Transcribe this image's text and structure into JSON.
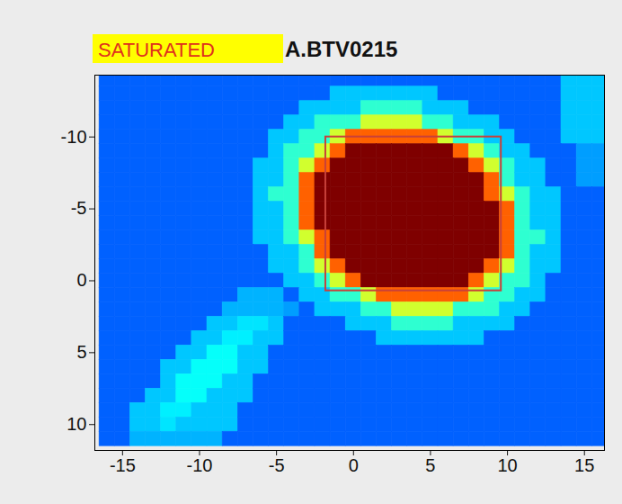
{
  "chart_data": {
    "type": "heatmap",
    "title": "A.BTV0215",
    "badge": "SATURATED",
    "xlim": [
      -16.8,
      16.3
    ],
    "xticks": [
      -15,
      -10,
      -5,
      0,
      5,
      10,
      15
    ],
    "ylim": [
      11.8,
      -14.3
    ],
    "yticks": [
      -10,
      -5,
      0,
      5,
      10
    ],
    "grid": false,
    "zlim": [
      0,
      100
    ],
    "roi": {
      "x": [
        -1.8,
        9.6
      ],
      "y": [
        -10,
        0.7
      ]
    },
    "x_edges": [
      -16.5,
      -15.5,
      -14.5,
      -13.5,
      -12.5,
      -11.5,
      -10.5,
      -9.5,
      -8.5,
      -7.5,
      -6.5,
      -5.5,
      -4.5,
      -3.5,
      -2.5,
      -1.5,
      -0.5,
      0.5,
      1.5,
      2.5,
      3.5,
      4.5,
      5.5,
      6.5,
      7.5,
      8.5,
      9.5,
      10.5,
      11.5,
      12.5,
      13.5,
      14.5,
      15.5,
      16.5
    ],
    "y_edges": [
      -14.5,
      -13.5,
      -12.5,
      -11.5,
      -10.5,
      -9.5,
      -8.5,
      -7.5,
      -6.5,
      -5.5,
      -4.5,
      -3.5,
      -2.5,
      -1.5,
      -0.5,
      0.5,
      1.5,
      2.5,
      3.5,
      4.5,
      5.5,
      6.5,
      7.5,
      8.5,
      9.5,
      10.5,
      11.5
    ],
    "z": [
      [
        22,
        22,
        22,
        22,
        22,
        22,
        22,
        22,
        22,
        22,
        22,
        22,
        22,
        22,
        22,
        22,
        22,
        22,
        22,
        22,
        22,
        22,
        22,
        22,
        22,
        22,
        22,
        22,
        22,
        22,
        32,
        32,
        32
      ],
      [
        22,
        22,
        22,
        22,
        22,
        22,
        22,
        22,
        22,
        22,
        22,
        22,
        22,
        22,
        22,
        32,
        32,
        32,
        32,
        32,
        32,
        32,
        22,
        22,
        22,
        22,
        22,
        22,
        22,
        22,
        32,
        32,
        32
      ],
      [
        22,
        22,
        22,
        22,
        22,
        22,
        22,
        22,
        22,
        22,
        22,
        22,
        22,
        32,
        32,
        32,
        32,
        42,
        42,
        42,
        42,
        32,
        32,
        32,
        22,
        22,
        22,
        22,
        22,
        22,
        32,
        32,
        32
      ],
      [
        22,
        22,
        22,
        22,
        22,
        22,
        22,
        22,
        22,
        22,
        22,
        22,
        32,
        32,
        42,
        42,
        42,
        58,
        58,
        58,
        58,
        42,
        42,
        32,
        32,
        32,
        22,
        22,
        22,
        22,
        32,
        32,
        32
      ],
      [
        22,
        22,
        22,
        22,
        22,
        22,
        22,
        22,
        22,
        22,
        22,
        32,
        32,
        42,
        42,
        58,
        78,
        78,
        78,
        78,
        78,
        78,
        58,
        42,
        42,
        32,
        32,
        22,
        22,
        22,
        32,
        32,
        32
      ],
      [
        22,
        22,
        22,
        22,
        22,
        22,
        22,
        22,
        22,
        22,
        22,
        32,
        42,
        42,
        58,
        78,
        100,
        100,
        100,
        100,
        100,
        100,
        100,
        78,
        58,
        42,
        32,
        32,
        22,
        22,
        22,
        28,
        28
      ],
      [
        22,
        22,
        22,
        22,
        22,
        22,
        22,
        22,
        22,
        22,
        32,
        32,
        42,
        58,
        78,
        100,
        100,
        100,
        100,
        100,
        100,
        100,
        100,
        100,
        78,
        58,
        42,
        32,
        32,
        22,
        22,
        28,
        28
      ],
      [
        22,
        22,
        22,
        22,
        22,
        22,
        22,
        22,
        22,
        22,
        32,
        32,
        42,
        78,
        100,
        100,
        100,
        100,
        100,
        100,
        100,
        100,
        100,
        100,
        100,
        78,
        42,
        32,
        32,
        22,
        22,
        28,
        28
      ],
      [
        22,
        22,
        22,
        22,
        22,
        22,
        22,
        22,
        22,
        22,
        32,
        42,
        42,
        78,
        100,
        100,
        100,
        100,
        100,
        100,
        100,
        100,
        100,
        100,
        100,
        78,
        58,
        42,
        32,
        32,
        22,
        22,
        22
      ],
      [
        22,
        22,
        22,
        22,
        22,
        22,
        22,
        22,
        22,
        22,
        32,
        32,
        42,
        78,
        100,
        100,
        100,
        100,
        100,
        100,
        100,
        100,
        100,
        100,
        100,
        100,
        78,
        42,
        32,
        32,
        22,
        22,
        22
      ],
      [
        22,
        22,
        22,
        22,
        22,
        22,
        22,
        22,
        22,
        22,
        32,
        32,
        42,
        78,
        100,
        100,
        100,
        100,
        100,
        100,
        100,
        100,
        100,
        100,
        100,
        100,
        78,
        42,
        32,
        32,
        22,
        22,
        22
      ],
      [
        22,
        22,
        22,
        22,
        22,
        22,
        22,
        22,
        22,
        22,
        32,
        32,
        42,
        58,
        78,
        100,
        100,
        100,
        100,
        100,
        100,
        100,
        100,
        100,
        100,
        100,
        78,
        42,
        42,
        32,
        22,
        22,
        22
      ],
      [
        22,
        22,
        22,
        22,
        22,
        22,
        22,
        22,
        22,
        22,
        22,
        32,
        32,
        42,
        78,
        100,
        100,
        100,
        100,
        100,
        100,
        100,
        100,
        100,
        100,
        100,
        78,
        42,
        32,
        32,
        22,
        22,
        22
      ],
      [
        22,
        22,
        22,
        22,
        22,
        22,
        22,
        22,
        22,
        22,
        22,
        32,
        32,
        42,
        58,
        78,
        100,
        100,
        100,
        100,
        100,
        100,
        100,
        100,
        100,
        78,
        58,
        42,
        32,
        32,
        22,
        22,
        22
      ],
      [
        22,
        22,
        22,
        22,
        22,
        22,
        22,
        22,
        22,
        22,
        22,
        22,
        32,
        32,
        42,
        58,
        78,
        100,
        100,
        100,
        100,
        100,
        100,
        100,
        78,
        58,
        42,
        42,
        32,
        22,
        22,
        22,
        22
      ],
      [
        22,
        22,
        22,
        22,
        22,
        22,
        22,
        22,
        22,
        30,
        30,
        30,
        22,
        32,
        32,
        42,
        42,
        58,
        78,
        78,
        78,
        78,
        78,
        78,
        58,
        42,
        42,
        32,
        32,
        22,
        22,
        22,
        22
      ],
      [
        22,
        22,
        22,
        22,
        22,
        22,
        22,
        22,
        30,
        30,
        30,
        30,
        28,
        22,
        32,
        32,
        32,
        42,
        42,
        58,
        58,
        58,
        58,
        42,
        42,
        42,
        32,
        32,
        22,
        22,
        22,
        22,
        22
      ],
      [
        22,
        22,
        22,
        22,
        22,
        22,
        22,
        32,
        32,
        35,
        35,
        32,
        22,
        22,
        22,
        22,
        32,
        32,
        32,
        42,
        42,
        42,
        42,
        32,
        32,
        32,
        32,
        22,
        22,
        22,
        22,
        22,
        22
      ],
      [
        22,
        22,
        22,
        22,
        22,
        22,
        32,
        32,
        36,
        36,
        32,
        32,
        22,
        22,
        22,
        22,
        22,
        22,
        32,
        32,
        32,
        32,
        32,
        32,
        32,
        22,
        22,
        22,
        22,
        22,
        22,
        22,
        22
      ],
      [
        22,
        22,
        22,
        22,
        22,
        32,
        32,
        38,
        38,
        32,
        32,
        22,
        22,
        22,
        22,
        22,
        22,
        22,
        22,
        22,
        22,
        22,
        22,
        22,
        22,
        22,
        22,
        22,
        22,
        22,
        22,
        22,
        22
      ],
      [
        22,
        22,
        22,
        22,
        32,
        32,
        38,
        38,
        38,
        32,
        32,
        22,
        22,
        22,
        22,
        22,
        22,
        22,
        22,
        22,
        22,
        22,
        22,
        22,
        22,
        22,
        22,
        22,
        22,
        22,
        22,
        22,
        22
      ],
      [
        22,
        22,
        22,
        22,
        32,
        38,
        38,
        38,
        32,
        32,
        22,
        22,
        22,
        22,
        22,
        22,
        22,
        22,
        22,
        22,
        22,
        22,
        22,
        22,
        22,
        22,
        22,
        22,
        22,
        22,
        22,
        22,
        22
      ],
      [
        22,
        22,
        22,
        32,
        32,
        38,
        38,
        32,
        32,
        32,
        22,
        22,
        22,
        22,
        22,
        22,
        22,
        22,
        22,
        22,
        22,
        22,
        22,
        22,
        22,
        22,
        22,
        22,
        22,
        22,
        22,
        22,
        22
      ],
      [
        22,
        22,
        32,
        32,
        36,
        36,
        32,
        32,
        32,
        22,
        22,
        22,
        22,
        22,
        22,
        22,
        22,
        22,
        22,
        22,
        22,
        22,
        22,
        22,
        22,
        22,
        22,
        22,
        22,
        22,
        22,
        22,
        22
      ],
      [
        22,
        22,
        32,
        32,
        35,
        32,
        32,
        32,
        32,
        22,
        22,
        22,
        22,
        22,
        22,
        22,
        22,
        22,
        22,
        22,
        22,
        22,
        22,
        22,
        22,
        22,
        22,
        22,
        22,
        22,
        22,
        22,
        22
      ],
      [
        22,
        22,
        30,
        30,
        30,
        30,
        30,
        30,
        22,
        22,
        22,
        22,
        22,
        22,
        22,
        22,
        22,
        22,
        22,
        22,
        22,
        22,
        22,
        22,
        22,
        22,
        22,
        22,
        22,
        22,
        22,
        22,
        22
      ]
    ]
  }
}
